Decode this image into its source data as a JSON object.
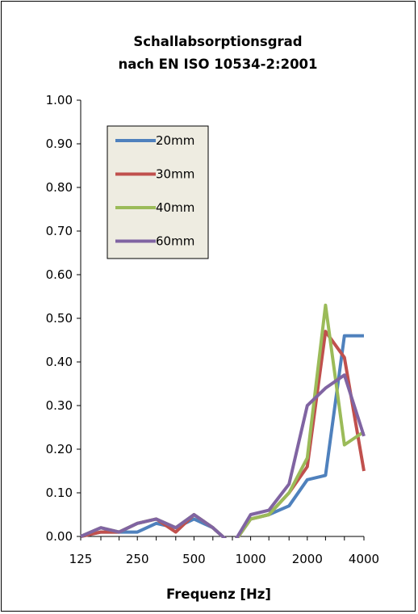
{
  "chart_data": {
    "type": "line",
    "title": [
      "Schallabsorptionsgrad",
      "nach EN ISO 10534-2:2001"
    ],
    "xlabel": "Frequenz [Hz]",
    "ylabel": "",
    "x_tick_labels": [
      "125",
      "250",
      "500",
      "1000",
      "2000",
      "4000"
    ],
    "y_tick_labels": [
      "0.00",
      "0.10",
      "0.20",
      "0.30",
      "0.40",
      "0.50",
      "0.60",
      "0.70",
      "0.80",
      "0.90",
      "1.00"
    ],
    "ylim": [
      0,
      1
    ],
    "x_scale": "log",
    "grid": false,
    "legend_position": "top-left",
    "x": [
      125,
      160,
      200,
      250,
      315,
      400,
      500,
      630,
      800,
      1000,
      1250,
      1600,
      2000,
      2500,
      3150,
      4000
    ],
    "series": [
      {
        "name": "20mm",
        "color": "#4f81bd",
        "values": [
          0.0,
          0.01,
          0.01,
          0.01,
          0.03,
          0.02,
          0.04,
          0.02,
          -0.02,
          0.04,
          0.05,
          0.07,
          0.13,
          0.14,
          0.46,
          0.46
        ]
      },
      {
        "name": "30mm",
        "color": "#c0504d",
        "values": [
          0.0,
          0.01,
          0.01,
          0.03,
          0.04,
          0.01,
          0.05,
          0.02,
          -0.02,
          0.04,
          0.05,
          0.1,
          0.16,
          0.47,
          0.41,
          0.15
        ]
      },
      {
        "name": "40mm",
        "color": "#9bbb59",
        "values": [
          0.0,
          0.02,
          0.01,
          0.03,
          0.04,
          0.02,
          0.05,
          0.02,
          -0.02,
          0.04,
          0.05,
          0.1,
          0.18,
          0.53,
          0.21,
          0.24
        ]
      },
      {
        "name": "60mm",
        "color": "#8064a2",
        "values": [
          0.0,
          0.02,
          0.01,
          0.03,
          0.04,
          0.02,
          0.05,
          0.02,
          -0.02,
          0.05,
          0.06,
          0.12,
          0.3,
          0.34,
          0.37,
          0.23
        ]
      }
    ]
  }
}
